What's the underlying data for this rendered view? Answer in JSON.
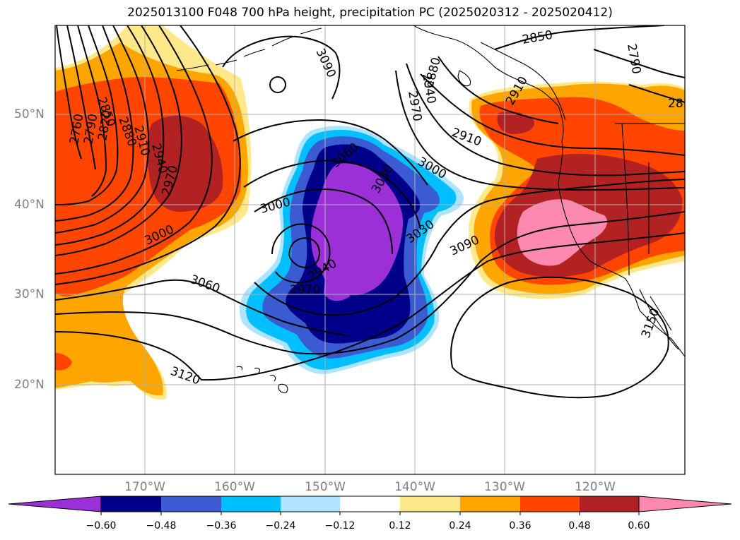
{
  "title": "2025013100 F048 700 hPa height, precipitation PC (2025020312 - 2025020412)",
  "lat_labels": [
    "50°N",
    "40°N",
    "30°N",
    "20°N"
  ],
  "lon_labels": [
    "170°W",
    "160°W",
    "150°W",
    "140°W",
    "130°W",
    "120°W"
  ],
  "contour_labels": {
    "c2760": "2760",
    "c2790": "2790",
    "c2820": "2820",
    "c2850": "2850",
    "c2880": "2880",
    "c2910": "2910",
    "c2940": "2940",
    "c2970": "2970",
    "c3000": "3000",
    "c3000b": "3000",
    "c3000c": "3000",
    "c3030": "3030",
    "c3030b": "3030",
    "c3060": "3060",
    "c3060b": "3060",
    "c3090": "3090",
    "c3090b": "3090",
    "c3120": "3120",
    "c3150": "3150",
    "c2940b": "2940",
    "c2970b": "2970",
    "c2970c": "2970",
    "c2940c": "2940",
    "c2880b": "2880",
    "c2850b": "2850",
    "c2910b": "2910",
    "c2790b": "2790",
    "c28r": "28",
    "c2910c": "2910"
  },
  "colorbar": {
    "labels": [
      "−0.60",
      "−0.48",
      "−0.36",
      "−0.24",
      "−0.12",
      "0.12",
      "0.24",
      "0.36",
      "0.48",
      "0.60"
    ],
    "colors": [
      "#9b30d8",
      "#00008b",
      "#3a5bd1",
      "#00bfff",
      "#aee4ff",
      "#ffffff",
      "#ffe88a",
      "#ffa500",
      "#ff4500",
      "#b22222",
      "#ff88b0"
    ]
  },
  "colors": {
    "pink": "#ff88b0",
    "darkred": "#b22222",
    "orangered": "#ff4500",
    "orange": "#ffa500",
    "lightyellow": "#ffe88a",
    "lightblue": "#aee4ff",
    "deepskyblue": "#00bfff",
    "royalblue": "#3a5bd1",
    "navy": "#00008b",
    "purple": "#9b30d8"
  }
}
